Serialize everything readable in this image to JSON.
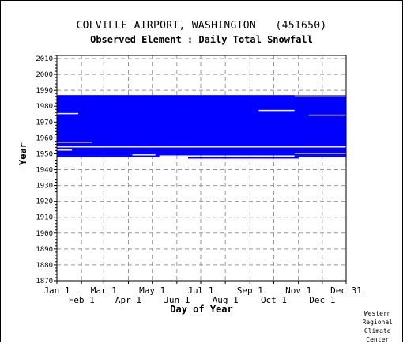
{
  "title": "COLVILLE AIRPORT, WASHINGTON   (451650)",
  "subtitle": "Observed Element : Daily Total Snowfall",
  "ylabel": "Year",
  "xlabel": "Day of Year",
  "credit": [
    "Western",
    "Regional",
    "Climate",
    "Center"
  ],
  "chart_data": {
    "type": "heatmap",
    "title": "COLVILLE AIRPORT, WASHINGTON   (451650)",
    "subtitle": "Observed Element : Daily Total Snowfall",
    "xlabel": "Day of Year",
    "ylabel": "Year",
    "xlim": [
      1,
      365
    ],
    "ylim": [
      1870,
      2012
    ],
    "grid": true,
    "yticks": [
      1870,
      1880,
      1890,
      1900,
      1910,
      1920,
      1930,
      1940,
      1950,
      1960,
      1970,
      1980,
      1990,
      2000,
      2010
    ],
    "xticks_top": [
      {
        "label": "Jan 1",
        "day": 1
      },
      {
        "label": "Mar 1",
        "day": 60
      },
      {
        "label": "May 1",
        "day": 121
      },
      {
        "label": "Jul 1",
        "day": 182
      },
      {
        "label": "Sep 1",
        "day": 244
      },
      {
        "label": "Nov 1",
        "day": 305
      },
      {
        "label": "Dec 31",
        "day": 365
      }
    ],
    "xticks_bottom": [
      {
        "label": "Feb 1",
        "day": 32
      },
      {
        "label": "Apr 1",
        "day": 91
      },
      {
        "label": "Jun 1",
        "day": 152
      },
      {
        "label": "Aug 1",
        "day": 213
      },
      {
        "label": "Oct 1",
        "day": 274
      },
      {
        "label": "Dec 1",
        "day": 335
      }
    ],
    "data_color": "#0000ff",
    "coverage": [
      {
        "day_start": 1,
        "day_end": 365,
        "year_start": 1949,
        "year_end": 1986
      },
      {
        "day_start": 1,
        "day_end": 130,
        "year_start": 1948,
        "year_end": 1948
      },
      {
        "day_start": 300,
        "day_end": 365,
        "year_start": 1948,
        "year_end": 1948
      },
      {
        "day_start": 166,
        "day_end": 305,
        "year_start": 1947,
        "year_end": 1947
      }
    ],
    "gaps": [
      {
        "day_start": 1,
        "day_end": 365,
        "year": 1954
      },
      {
        "day_start": 1,
        "day_end": 28,
        "year": 1975
      },
      {
        "day_start": 255,
        "day_end": 300,
        "year": 1977
      },
      {
        "day_start": 318,
        "day_end": 365,
        "year": 1974
      },
      {
        "day_start": 300,
        "day_end": 365,
        "year": 1986
      },
      {
        "day_start": 1,
        "day_end": 45,
        "year": 1957
      },
      {
        "day_start": 1,
        "day_end": 20,
        "year": 1952
      },
      {
        "day_start": 96,
        "day_end": 125,
        "year": 1949
      },
      {
        "day_start": 300,
        "day_end": 365,
        "year": 1950
      }
    ]
  }
}
